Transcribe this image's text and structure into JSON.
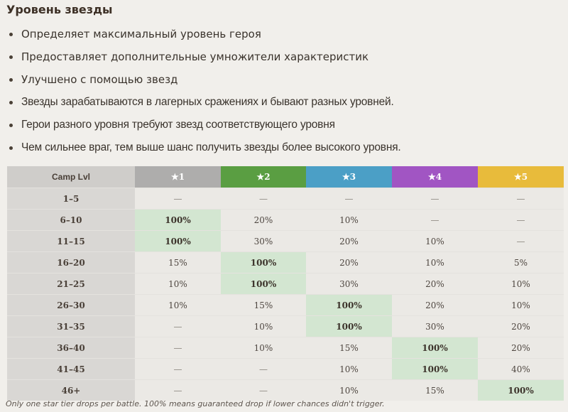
{
  "title": "Уровень звезды",
  "bullets": [
    "Определяет максимальный уровень героя",
    "Предоставляет дополнительные умножители характеристик",
    "Улучшено с помощью звезд",
    "Звезды зарабатываются в лагерных сражениях и бывают разных уровней.",
    "Герои разного уровня требуют звезд соответствующего уровня",
    "Чем сильнее враг, тем выше шанс получить звезды более высокого уровня."
  ],
  "table": {
    "headers": [
      {
        "label": "Camp Lvl",
        "color": "#cfcdca"
      },
      {
        "label": "★1",
        "color": "#aeadac"
      },
      {
        "label": "★2",
        "color": "#5a9e42"
      },
      {
        "label": "★3",
        "color": "#4b9fc6"
      },
      {
        "label": "★4",
        "color": "#a155c3"
      },
      {
        "label": "★5",
        "color": "#e8bb3b"
      }
    ],
    "rows": [
      {
        "lvl": "1–5",
        "cells": [
          "—",
          "—",
          "—",
          "—",
          "—"
        ]
      },
      {
        "lvl": "6–10",
        "cells": [
          "100%",
          "20%",
          "10%",
          "—",
          "—"
        ]
      },
      {
        "lvl": "11–15",
        "cells": [
          "100%",
          "30%",
          "20%",
          "10%",
          "—"
        ]
      },
      {
        "lvl": "16–20",
        "cells": [
          "15%",
          "100%",
          "20%",
          "10%",
          "5%"
        ]
      },
      {
        "lvl": "21–25",
        "cells": [
          "10%",
          "100%",
          "30%",
          "20%",
          "10%"
        ]
      },
      {
        "lvl": "26–30",
        "cells": [
          "10%",
          "15%",
          "100%",
          "20%",
          "10%"
        ]
      },
      {
        "lvl": "31–35",
        "cells": [
          "—",
          "10%",
          "100%",
          "30%",
          "20%"
        ]
      },
      {
        "lvl": "36–40",
        "cells": [
          "—",
          "10%",
          "15%",
          "100%",
          "20%"
        ]
      },
      {
        "lvl": "41–45",
        "cells": [
          "—",
          "—",
          "10%",
          "100%",
          "40%"
        ]
      },
      {
        "lvl": "46+",
        "cells": [
          "—",
          "—",
          "10%",
          "15%",
          "100%"
        ]
      }
    ],
    "highlight_color": "#d3e6d1"
  },
  "footnote": "Only one star tier drops per battle. 100% means guaranteed drop if lower chances didn't trigger."
}
